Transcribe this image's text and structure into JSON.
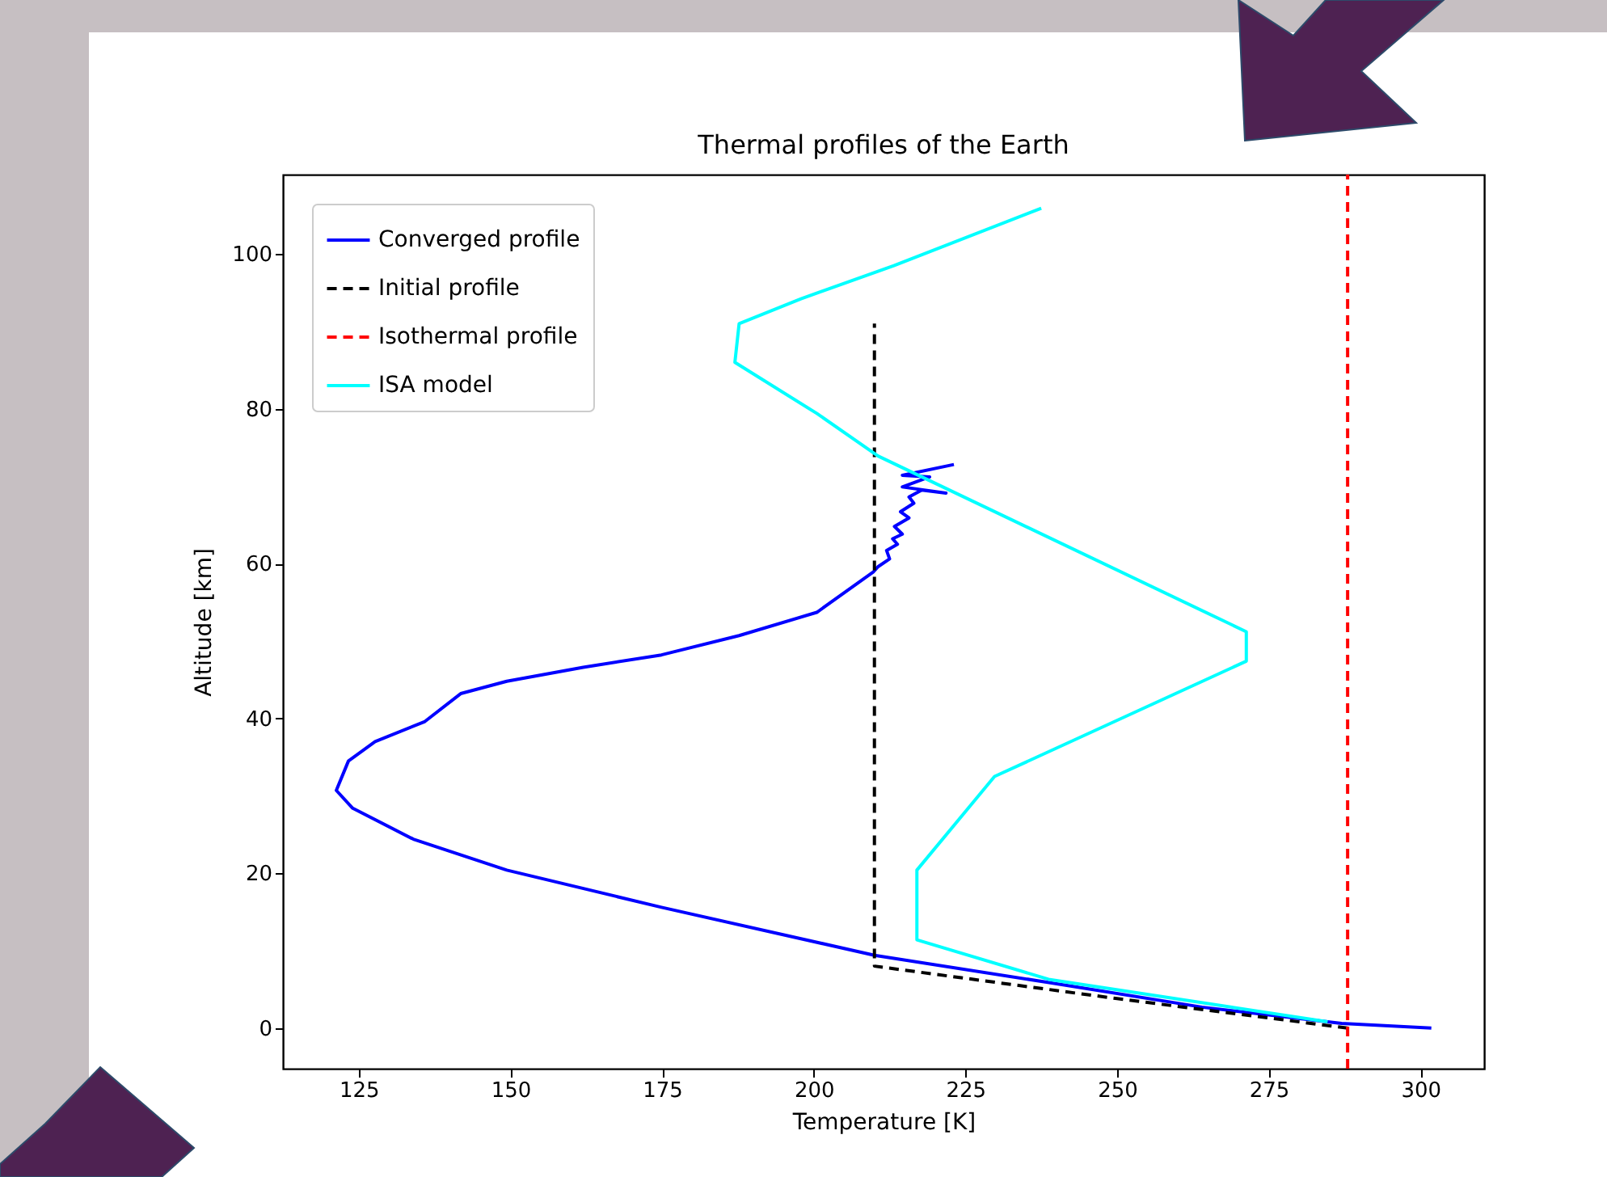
{
  "chart_data": {
    "type": "line",
    "title": "Thermal profiles of the Earth",
    "xlabel": "Temperature [K]",
    "ylabel": "Altitude [km]",
    "xlim": [
      112.5,
      310.5
    ],
    "ylim": [
      -5.25,
      110.25
    ],
    "xticks": [
      125,
      150,
      175,
      200,
      225,
      250,
      275,
      300
    ],
    "yticks": [
      0,
      20,
      40,
      60,
      80,
      100
    ],
    "grid": false,
    "legend": "top left",
    "marker": "none",
    "series": [
      {
        "name": "Converged profile",
        "color": "#0000ff",
        "line_style": "solid",
        "x": [
          301.8,
          287,
          264,
          238.6,
          210,
          174.9,
          149.4,
          134,
          124,
          121.3,
          123.3,
          127.7,
          135.9,
          141.8,
          149.4,
          162,
          174.9,
          187.7,
          200.5,
          209.8,
          210.6,
          212.5,
          212,
          213.8,
          213,
          214.6,
          213.3,
          215.7,
          214.3,
          216.5,
          215.7,
          217.8,
          221.8,
          214.6,
          219.1,
          214.6,
          223.1
        ],
        "values": [
          0,
          0.6,
          2.7,
          5.9,
          9.4,
          15.6,
          20.4,
          24.4,
          28.4,
          30.7,
          34.5,
          37,
          39.6,
          43.2,
          44.8,
          46.6,
          48.2,
          50.7,
          53.7,
          58.9,
          59.6,
          60.6,
          61.7,
          62.5,
          63.2,
          63.8,
          64.8,
          65.9,
          66.7,
          67.8,
          68.6,
          69.5,
          69.1,
          69.9,
          71.2,
          71.4,
          72.8
        ]
      },
      {
        "name": "Initial profile",
        "color": "#000000",
        "line_style": "dashed",
        "x": [
          288,
          250,
          210,
          210
        ],
        "values": [
          0,
          3.8,
          8,
          91
        ]
      },
      {
        "name": "Isothermal profile",
        "color": "#ff0000",
        "line_style": "dashed",
        "x": [
          288,
          288
        ],
        "values": [
          -5.25,
          110.25
        ]
      },
      {
        "name": "ISA model",
        "color": "#00ffff",
        "line_style": "solid",
        "x": [
          284.7,
          238.7,
          217,
          217,
          229.8,
          271.3,
          271.3,
          210.6,
          200.5,
          187,
          187.7,
          197.9,
          213.2,
          237.5
        ],
        "values": [
          0.8,
          6.3,
          11.4,
          20.4,
          32.5,
          47.4,
          51.2,
          73.9,
          79.4,
          86,
          91,
          94.2,
          98.5,
          105.9
        ]
      }
    ]
  }
}
